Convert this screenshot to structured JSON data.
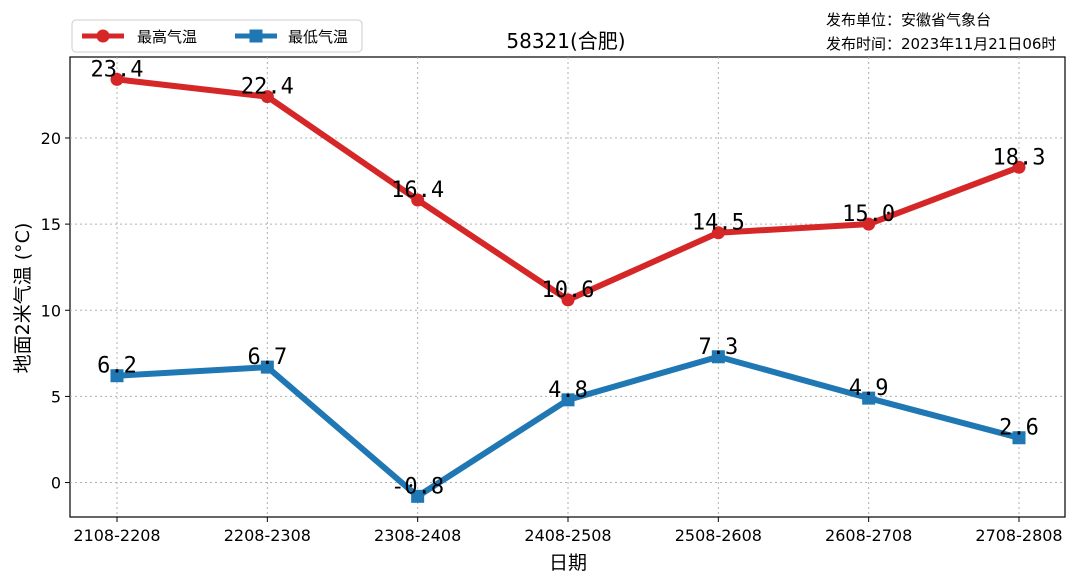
{
  "header": {
    "title": "58321(合肥)",
    "publisher": "发布单位：安徽省气象台",
    "publish_time": "发布时间：2023年11月21日06时"
  },
  "chart_data": {
    "type": "line",
    "title": "58321(合肥)",
    "xlabel": "日期",
    "ylabel": "地面2米气温 (°C)",
    "categories": [
      "2108-2208",
      "2208-2308",
      "2308-2408",
      "2408-2508",
      "2508-2608",
      "2608-2708",
      "2708-2808"
    ],
    "ylim": [
      -2,
      24.7
    ],
    "yticks": [
      0,
      5,
      10,
      15,
      20
    ],
    "grid": true,
    "legend_position": "top-left",
    "series": [
      {
        "name": "最高气温",
        "values": [
          23.4,
          22.4,
          16.4,
          10.6,
          14.5,
          15.0,
          18.3
        ],
        "labels": [
          "23.4",
          "22.4",
          "16.4",
          "10.6",
          "14.5",
          "15.0",
          "18.3"
        ],
        "color": "#d62728",
        "marker": "circle"
      },
      {
        "name": "最低气温",
        "values": [
          6.2,
          6.7,
          -0.8,
          4.8,
          7.3,
          4.9,
          2.6
        ],
        "labels": [
          "6.2",
          "6.7",
          "-0.8",
          "4.8",
          "7.3",
          "4.9",
          "2.6"
        ],
        "color": "#1f77b4",
        "marker": "square"
      }
    ]
  }
}
